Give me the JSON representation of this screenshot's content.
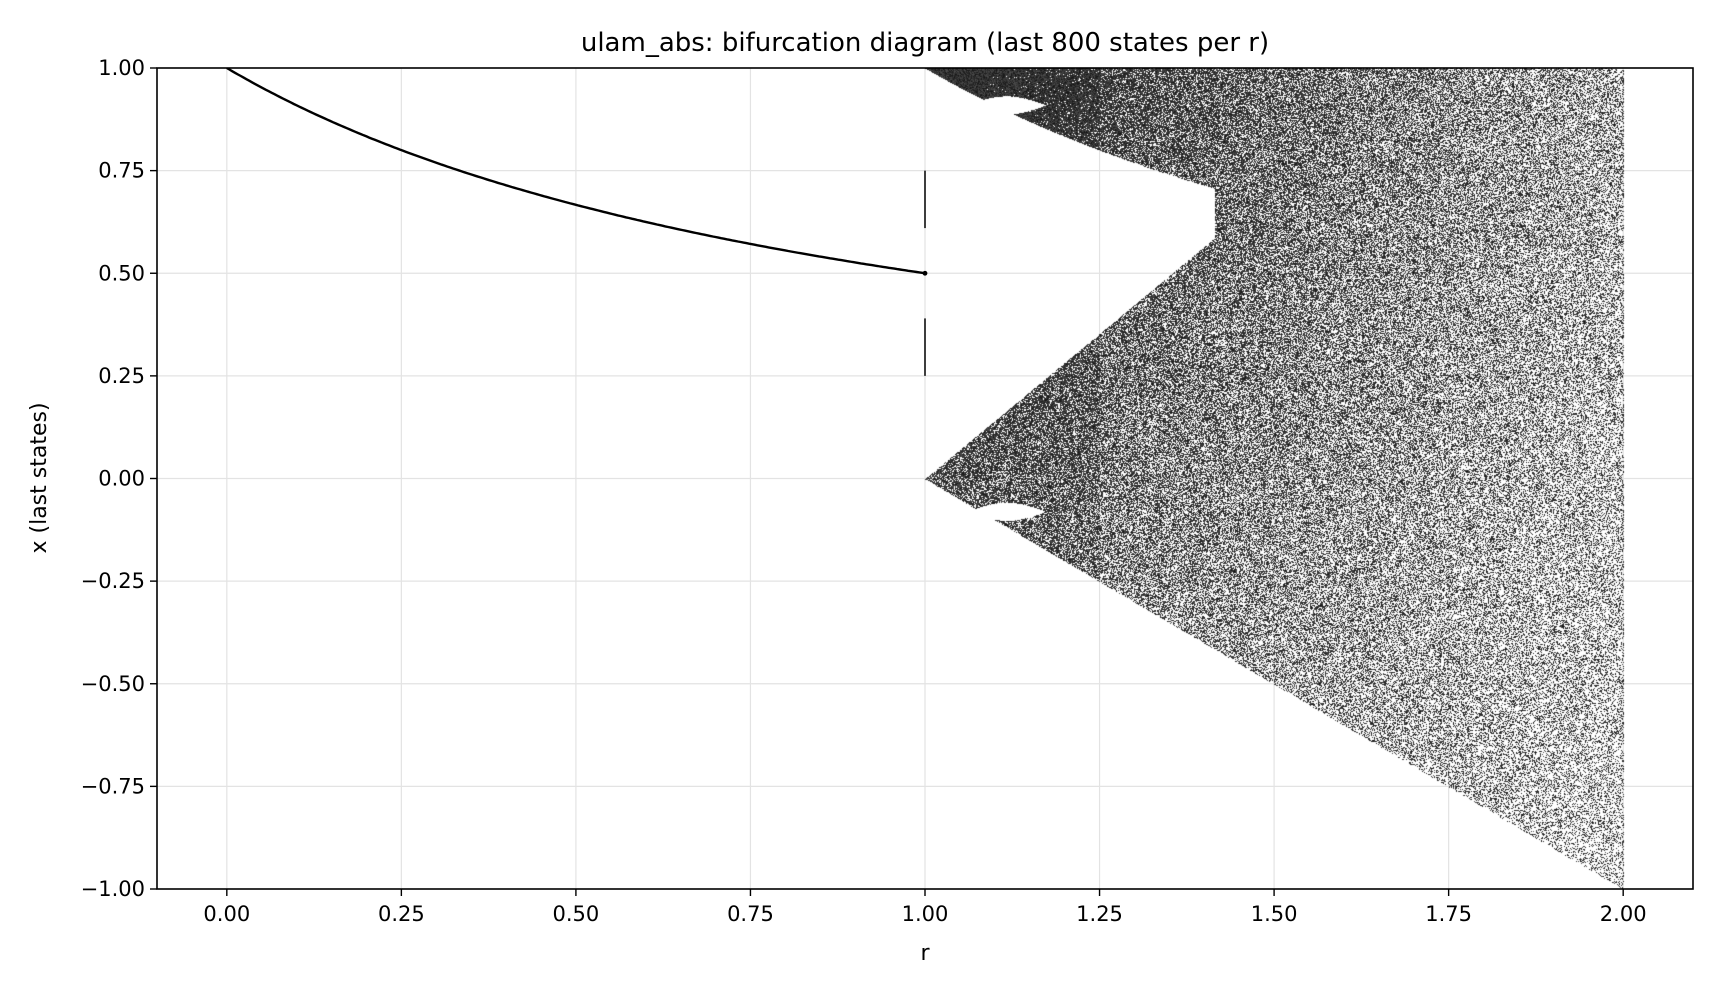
{
  "chart_data": {
    "type": "scatter",
    "title": "ulam_abs: bifurcation diagram (last 800 states per r)",
    "xlabel": "r",
    "ylabel": "x (last states)",
    "xlim": [
      -0.1,
      2.1
    ],
    "ylim": [
      -1.0,
      1.0
    ],
    "xticks": [
      0.0,
      0.25,
      0.5,
      0.75,
      1.0,
      1.25,
      1.5,
      1.75,
      2.0
    ],
    "xtick_labels": [
      "0.00",
      "0.25",
      "0.50",
      "0.75",
      "1.00",
      "1.25",
      "1.50",
      "1.75",
      "2.00"
    ],
    "yticks": [
      -1.0,
      -0.75,
      -0.5,
      -0.25,
      0.0,
      0.25,
      0.5,
      0.75,
      1.0
    ],
    "ytick_labels": [
      "−1.00",
      "−0.75",
      "−0.50",
      "−0.25",
      "0.00",
      "0.25",
      "0.50",
      "0.75",
      "1.00"
    ],
    "grid": true,
    "marker_color": "#000000",
    "series": [
      {
        "fixed_point_branch": {
          "r": [
            0.0,
            0.1,
            0.2,
            0.3,
            0.4,
            0.5,
            0.6,
            0.7,
            0.8,
            0.9,
            1.0
          ],
          "x": [
            1.0,
            0.909,
            0.833,
            0.769,
            0.714,
            0.667,
            0.625,
            0.588,
            0.556,
            0.526,
            0.5
          ]
        }
      },
      {
        "transition_at_r_1": {
          "r": 1.0,
          "x_segments": [
            [
              0.61,
              0.75
            ],
            [
              0.25,
              0.39
            ]
          ],
          "x_points": [
            0.5
          ]
        }
      },
      {
        "chaotic_band": {
          "r_range": [
            1.0,
            2.0
          ],
          "upper_bound_x": 1.0,
          "lower_bound_x_at_r": {
            "r": [
              1.0,
              1.25,
              1.5,
              1.75,
              2.0
            ],
            "x": [
              0.0,
              -0.25,
              -0.5,
              -0.75,
              -1.0
            ]
          },
          "inner_gap_upper_edge": {
            "r": [
              1.0,
              1.1,
              1.2,
              1.3,
              1.414
            ],
            "x": [
              1.0,
              0.818,
              0.667,
              0.538,
              0.414
            ]
          },
          "inner_gap_lower_edge": {
            "r": [
              1.0,
              1.1,
              1.2,
              1.3,
              1.414
            ],
            "x": [
              0.0,
              0.073,
              0.133,
              0.231,
              0.414
            ]
          },
          "window_hole_upper": {
            "r_range": [
              1.06,
              1.19
            ],
            "center_x": 0.91
          },
          "window_hole_lower": {
            "r_range": [
              1.06,
              1.19
            ],
            "center_x": -0.08
          }
        }
      }
    ]
  }
}
